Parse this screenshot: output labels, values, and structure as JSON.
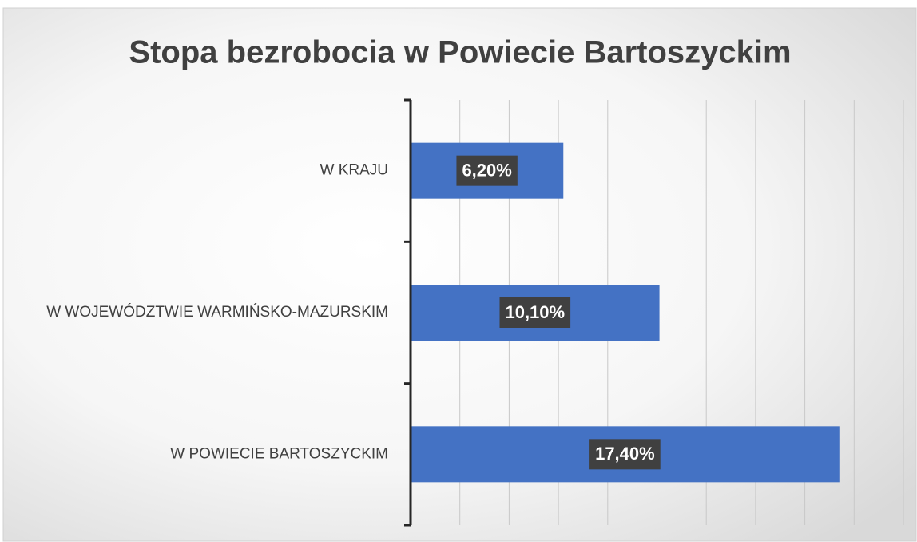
{
  "chart_data": {
    "type": "bar",
    "orientation": "horizontal",
    "title": "Stopa bezrobocia w Powiecie Bartoszyckim",
    "categories": [
      "W KRAJU",
      "W WOJEWÓDZTWIE WARMIŃSKO-MAZURSKIM",
      "W POWIECIE BARTOSZYCKIM"
    ],
    "values": [
      6.2,
      10.1,
      17.4
    ],
    "value_labels": [
      "6,20%",
      "10,10%",
      "17,40%"
    ],
    "color": "#4472c4",
    "xlim": [
      0,
      20
    ],
    "xticks": [
      0,
      2,
      4,
      6,
      8,
      10,
      12,
      14,
      16,
      18,
      20
    ],
    "grid": true
  }
}
